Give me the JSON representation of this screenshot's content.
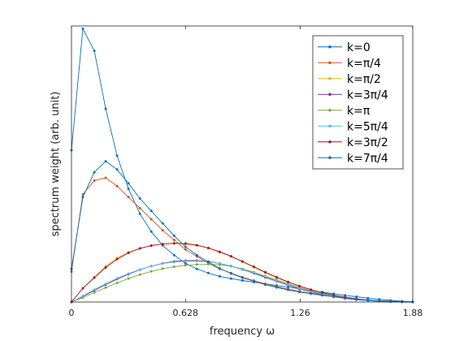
{
  "chart_data": {
    "type": "line",
    "title": "",
    "xlabel": "frequency ω",
    "ylabel": "spectrum weight    (arb. unit)",
    "xlim": [
      0,
      1.88
    ],
    "ylim": [
      0,
      1.0
    ],
    "xticks": [
      0,
      0.628,
      1.26,
      1.88
    ],
    "xtick_labels": [
      "0",
      "0.628",
      "1.26",
      "1.88"
    ],
    "legend_position": "top-right",
    "grid": false,
    "x": [
      0.0,
      0.0628,
      0.1256,
      0.1884,
      0.2512,
      0.314,
      0.3768,
      0.4396,
      0.5024,
      0.5652,
      0.628,
      0.6908,
      0.7536,
      0.8164,
      0.8792,
      0.942,
      1.0048,
      1.0676,
      1.1304,
      1.1932,
      1.256,
      1.3188,
      1.3816,
      1.4444,
      1.5072,
      1.57,
      1.6328,
      1.6956,
      1.7584,
      1.8212,
      1.88
    ],
    "series": [
      {
        "name": "k=0",
        "color": "#0072BD",
        "values": [
          0.55,
          0.99,
          0.91,
          0.7,
          0.53,
          0.41,
          0.32,
          0.255,
          0.205,
          0.17,
          0.14,
          0.12,
          0.105,
          0.093,
          0.085,
          0.078,
          0.072,
          0.066,
          0.06,
          0.054,
          0.048,
          0.042,
          0.036,
          0.03,
          0.024,
          0.019,
          0.014,
          0.01,
          0.006,
          0.003,
          0.001
        ]
      },
      {
        "name": "k=π/4",
        "color": "#D95319",
        "values": [
          0.11,
          0.39,
          0.44,
          0.45,
          0.42,
          0.38,
          0.34,
          0.3,
          0.26,
          0.225,
          0.19,
          0.165,
          0.14,
          0.12,
          0.105,
          0.09,
          0.078,
          0.066,
          0.056,
          0.047,
          0.039,
          0.032,
          0.026,
          0.02,
          0.015,
          0.011,
          0.008,
          0.005,
          0.003,
          0.001,
          0.0
        ]
      },
      {
        "name": "k=π/2",
        "color": "#EDB120",
        "values": [
          0.0,
          0.05,
          0.09,
          0.13,
          0.16,
          0.18,
          0.195,
          0.205,
          0.21,
          0.212,
          0.21,
          0.205,
          0.195,
          0.18,
          0.165,
          0.145,
          0.125,
          0.106,
          0.088,
          0.071,
          0.057,
          0.044,
          0.033,
          0.024,
          0.017,
          0.011,
          0.007,
          0.004,
          0.002,
          0.001,
          0.0
        ]
      },
      {
        "name": "k=3π/4",
        "color": "#7E2F8E",
        "values": [
          0.0,
          0.02,
          0.042,
          0.063,
          0.083,
          0.101,
          0.117,
          0.13,
          0.14,
          0.147,
          0.15,
          0.15,
          0.147,
          0.14,
          0.13,
          0.118,
          0.104,
          0.089,
          0.075,
          0.061,
          0.048,
          0.037,
          0.027,
          0.019,
          0.013,
          0.008,
          0.005,
          0.003,
          0.001,
          0.0,
          0.0
        ]
      },
      {
        "name": "k=π",
        "color": "#77AC30",
        "values": [
          0.0,
          0.016,
          0.034,
          0.052,
          0.069,
          0.085,
          0.099,
          0.111,
          0.121,
          0.128,
          0.133,
          0.136,
          0.137,
          0.135,
          0.129,
          0.12,
          0.108,
          0.094,
          0.08,
          0.066,
          0.053,
          0.041,
          0.031,
          0.022,
          0.015,
          0.01,
          0.006,
          0.003,
          0.001,
          0.0,
          0.0
        ]
      },
      {
        "name": "k=5π/4",
        "color": "#4DBEEE",
        "values": [
          0.0,
          0.022,
          0.045,
          0.066,
          0.086,
          0.103,
          0.118,
          0.13,
          0.139,
          0.145,
          0.148,
          0.148,
          0.146,
          0.14,
          0.131,
          0.119,
          0.106,
          0.092,
          0.077,
          0.063,
          0.05,
          0.039,
          0.029,
          0.02,
          0.014,
          0.009,
          0.005,
          0.003,
          0.001,
          0.0,
          0.0
        ]
      },
      {
        "name": "k=3π/2",
        "color": "#A2142F",
        "values": [
          0.0,
          0.05,
          0.088,
          0.125,
          0.155,
          0.178,
          0.194,
          0.204,
          0.21,
          0.213,
          0.212,
          0.206,
          0.196,
          0.182,
          0.166,
          0.147,
          0.128,
          0.108,
          0.09,
          0.073,
          0.058,
          0.045,
          0.034,
          0.025,
          0.018,
          0.012,
          0.007,
          0.004,
          0.002,
          0.001,
          0.0
        ]
      },
      {
        "name": "k=7π/4",
        "color": "#0072BD",
        "values": [
          0.12,
          0.38,
          0.47,
          0.51,
          0.48,
          0.43,
          0.375,
          0.33,
          0.285,
          0.24,
          0.2,
          0.17,
          0.145,
          0.122,
          0.103,
          0.088,
          0.075,
          0.063,
          0.053,
          0.044,
          0.036,
          0.03,
          0.024,
          0.019,
          0.014,
          0.01,
          0.007,
          0.004,
          0.002,
          0.001,
          0.0
        ]
      }
    ]
  }
}
